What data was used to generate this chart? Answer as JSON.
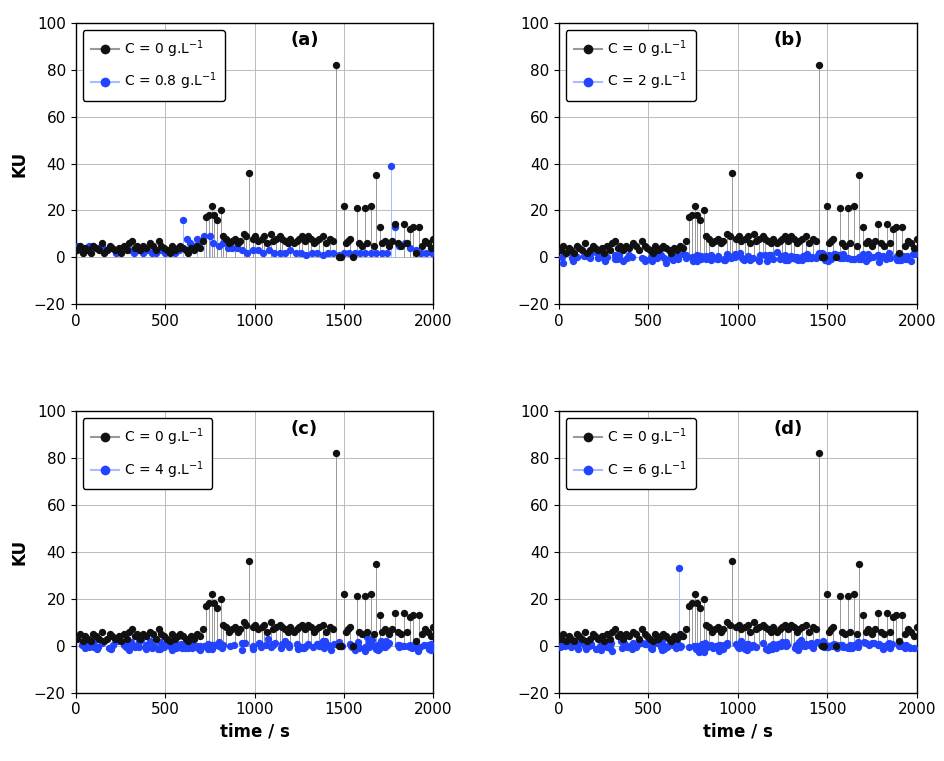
{
  "panels": [
    {
      "label": "a",
      "conc_black": "C = 0 g.L$^{-1}$",
      "conc_blue": "C = 0.8 g.L$^{-1}$"
    },
    {
      "label": "b",
      "conc_black": "C = 0 g.L$^{-1}$",
      "conc_blue": "C = 2 g.L$^{-1}$"
    },
    {
      "label": "c",
      "conc_black": "C = 0 g.L$^{-1}$",
      "conc_blue": "C = 4 g.L$^{-1}$"
    },
    {
      "label": "d",
      "conc_black": "C = 0 g.L$^{-1}$",
      "conc_blue": "C = 6 g.L$^{-1}$"
    }
  ],
  "xlim": [
    0,
    2000
  ],
  "ylim": [
    -20,
    100
  ],
  "yticks": [
    -20,
    0,
    20,
    40,
    60,
    80,
    100
  ],
  "xticks": [
    0,
    500,
    1000,
    1500,
    2000
  ],
  "xlabel": "time / s",
  "ylabel": "KU",
  "black_color": "#111111",
  "blue_color": "#2244FF",
  "marker_size": 28,
  "line_color_black": "#999999",
  "line_color_blue": "#AABBFF",
  "background": "#FFFFFF",
  "grid_color": "#BBBBBB"
}
